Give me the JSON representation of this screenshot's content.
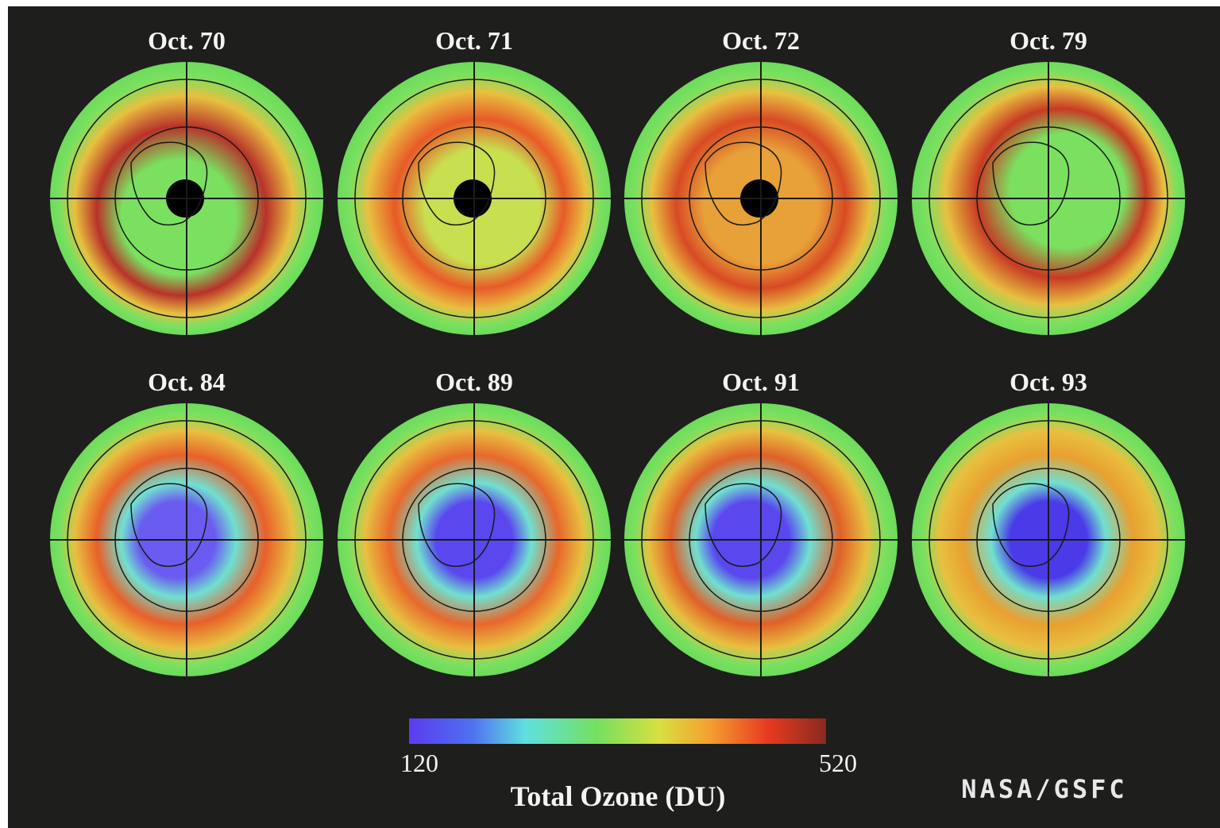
{
  "panels": [
    {
      "label": "Oct. 70"
    },
    {
      "label": "Oct. 71"
    },
    {
      "label": "Oct. 72"
    },
    {
      "label": "Oct. 79"
    },
    {
      "label": "Oct. 84"
    },
    {
      "label": "Oct. 89"
    },
    {
      "label": "Oct. 91"
    },
    {
      "label": "Oct. 93"
    }
  ],
  "colorbar": {
    "min": 120,
    "max": 520,
    "title": "Total Ozone (DU)"
  },
  "credit": "NASA/GSFC"
}
